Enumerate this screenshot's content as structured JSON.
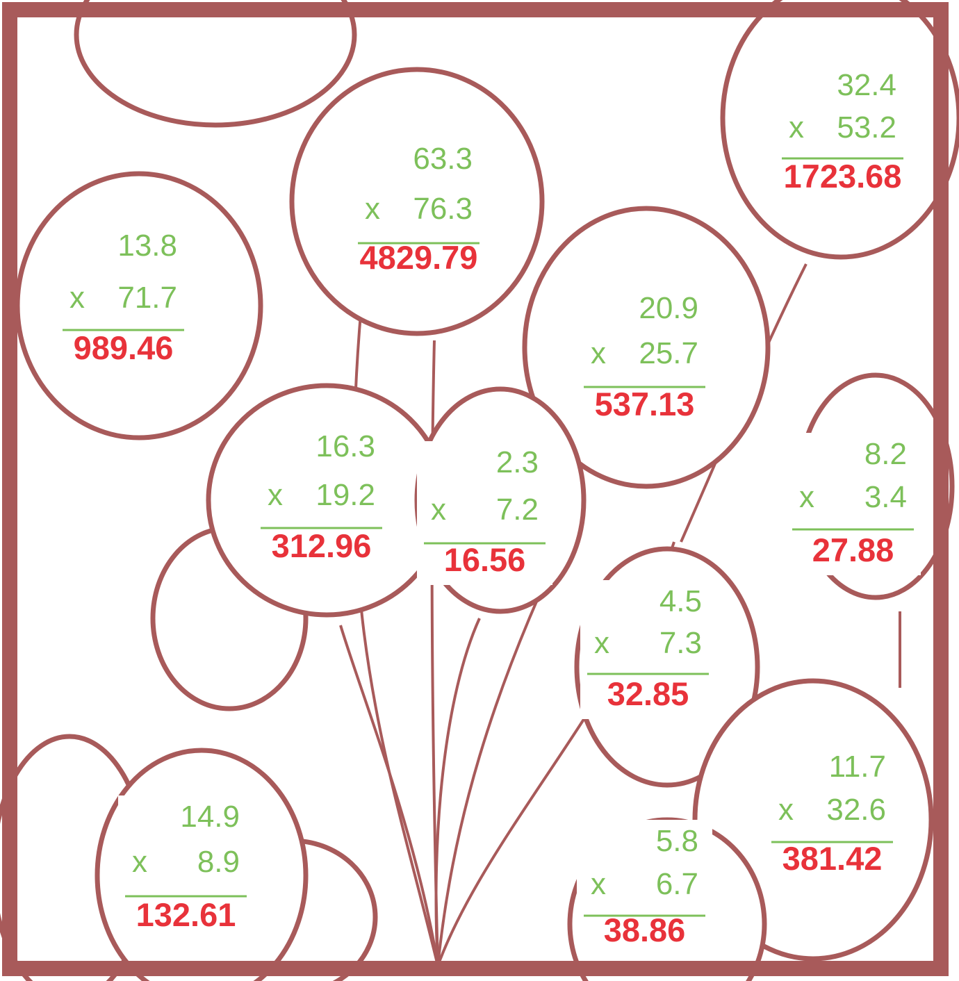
{
  "problems": [
    {
      "a": "13.8",
      "op": "x",
      "b": "71.7",
      "answer": "989.46"
    },
    {
      "a": "63.3",
      "op": "x",
      "b": "76.3",
      "answer": "4829.79"
    },
    {
      "a": "32.4",
      "op": "x",
      "b": "53.2",
      "answer": "1723.68"
    },
    {
      "a": "20.9",
      "op": "x",
      "b": "25.7",
      "answer": "537.13"
    },
    {
      "a": "16.3",
      "op": "x",
      "b": "19.2",
      "answer": "312.96"
    },
    {
      "a": "2.3",
      "op": "x",
      "b": "7.2",
      "answer": "16.56"
    },
    {
      "a": "8.2",
      "op": "x",
      "b": "3.4",
      "answer": "27.88"
    },
    {
      "a": "4.5",
      "op": "x",
      "b": "7.3",
      "answer": "32.85"
    },
    {
      "a": "11.7",
      "op": "x",
      "b": "32.6",
      "answer": "381.42"
    },
    {
      "a": "14.9",
      "op": "x",
      "b": "8.9",
      "answer": "132.61"
    },
    {
      "a": "5.8",
      "op": "x",
      "b": "6.7",
      "answer": "38.86"
    }
  ]
}
